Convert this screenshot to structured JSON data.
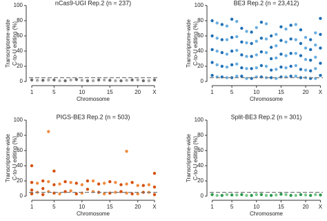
{
  "chart_data": [
    {
      "type": "scatter",
      "title": "nCas9-UGI Rep.2 (n = 237)",
      "ylabel": [
        "Transcriptome-wide",
        "C-to-U editing (%)"
      ],
      "xlabel": "Chromosome",
      "xlim": [
        0.5,
        23.5
      ],
      "ylim": [
        0,
        100
      ],
      "xticks": [
        1,
        5,
        10,
        15,
        20,
        {
          "value": 23,
          "label": "X"
        }
      ],
      "yticks": [
        0,
        20,
        40,
        60,
        80,
        100
      ],
      "reference_line": 5,
      "series": [
        {
          "color": "#6e6e6e",
          "x": [
            1,
            3,
            5,
            7,
            9,
            11,
            13,
            15,
            17,
            19,
            21,
            23
          ],
          "y": [
            2,
            1.5,
            2,
            1,
            2.5,
            1,
            2,
            1.5,
            1,
            2,
            1,
            2
          ]
        },
        {
          "color": "#a8a8a8",
          "x": [
            2,
            4,
            6,
            8,
            10,
            12,
            14,
            16,
            18,
            20,
            22
          ],
          "y": [
            1.5,
            2,
            1,
            2,
            1.5,
            1,
            2,
            1,
            1.5,
            2,
            1
          ]
        }
      ]
    },
    {
      "type": "scatter",
      "title": "BE3 Rep.2 (n = 23,412)",
      "ylabel": [
        "Transcriptome-wide",
        "C-to-U editing (%)"
      ],
      "xlabel": "Chromosome",
      "xlim": [
        0.5,
        23.5
      ],
      "ylim": [
        0,
        100
      ],
      "xticks": [
        1,
        5,
        10,
        15,
        20,
        {
          "value": 23,
          "label": "X"
        }
      ],
      "yticks": [
        0,
        20,
        40,
        60,
        80,
        100
      ],
      "reference_line": 5,
      "series": [
        {
          "color": "#1f6fb4",
          "x": [
            1,
            1,
            1,
            1,
            1,
            3,
            3,
            3,
            3,
            3,
            5,
            5,
            5,
            5,
            5,
            7,
            7,
            7,
            7,
            7,
            9,
            9,
            9,
            9,
            9,
            11,
            11,
            11,
            11,
            11,
            13,
            13,
            13,
            13,
            13,
            15,
            15,
            15,
            15,
            15,
            17,
            17,
            17,
            17,
            17,
            19,
            19,
            19,
            19,
            19,
            21,
            21,
            21,
            21,
            21,
            23,
            23,
            23,
            23,
            23
          ],
          "y": [
            80,
            60,
            42,
            25,
            8,
            75,
            55,
            38,
            20,
            6,
            82,
            58,
            40,
            22,
            5,
            70,
            52,
            35,
            18,
            7,
            65,
            50,
            33,
            17,
            4,
            78,
            57,
            39,
            21,
            6,
            60,
            45,
            30,
            15,
            5,
            72,
            54,
            36,
            19,
            6,
            74,
            56,
            37,
            20,
            7,
            68,
            50,
            34,
            16,
            5,
            55,
            42,
            28,
            14,
            4,
            83,
            62,
            44,
            24,
            8
          ]
        },
        {
          "color": "#6aaee0",
          "x": [
            2,
            2,
            2,
            2,
            2,
            4,
            4,
            4,
            4,
            4,
            6,
            6,
            6,
            6,
            6,
            8,
            8,
            8,
            8,
            8,
            10,
            10,
            10,
            10,
            10,
            12,
            12,
            12,
            12,
            12,
            14,
            14,
            14,
            14,
            14,
            16,
            16,
            16,
            16,
            16,
            18,
            18,
            18,
            18,
            18,
            20,
            20,
            20,
            20,
            20,
            22,
            22,
            22,
            22,
            22
          ],
          "y": [
            77,
            57,
            40,
            22,
            6,
            73,
            55,
            36,
            19,
            5,
            79,
            59,
            41,
            23,
            7,
            66,
            51,
            33,
            17,
            4,
            71,
            53,
            35,
            18,
            6,
            76,
            56,
            38,
            20,
            5,
            62,
            47,
            31,
            16,
            4,
            69,
            52,
            34,
            18,
            6,
            75,
            55,
            37,
            21,
            7,
            58,
            44,
            29,
            15,
            5,
            64,
            48,
            32,
            17,
            4
          ]
        }
      ]
    },
    {
      "type": "scatter",
      "title": "PIGS-BE3 Rep.2 (n = 503)",
      "ylabel": [
        "Transcriptome-wide",
        "C-to-U editing (%)"
      ],
      "xlabel": "Chromosome",
      "xlim": [
        0.5,
        23.5
      ],
      "ylim": [
        0,
        100
      ],
      "xticks": [
        1,
        5,
        10,
        15,
        20,
        {
          "value": 23,
          "label": "X"
        }
      ],
      "yticks": [
        0,
        20,
        40,
        60,
        80,
        100
      ],
      "reference_line": 5,
      "series": [
        {
          "color": "#d4500c",
          "x": [
            1,
            1,
            1,
            1,
            3,
            3,
            3,
            5,
            5,
            5,
            7,
            7,
            9,
            9,
            11,
            11,
            13,
            13,
            15,
            15,
            17,
            17,
            19,
            19,
            21,
            21,
            23,
            23,
            23
          ],
          "y": [
            40,
            18,
            8,
            3,
            20,
            10,
            2,
            33,
            15,
            4,
            19,
            6,
            17,
            3,
            20,
            9,
            16,
            5,
            19,
            4,
            15,
            6,
            18,
            3,
            14,
            5,
            30,
            12,
            2
          ]
        },
        {
          "color": "#f08a3c",
          "x": [
            2,
            2,
            4,
            4,
            4,
            6,
            6,
            8,
            8,
            10,
            10,
            12,
            12,
            14,
            14,
            16,
            16,
            18,
            18,
            18,
            20,
            20,
            22,
            22
          ],
          "y": [
            17,
            5,
            85,
            19,
            6,
            16,
            3,
            18,
            7,
            15,
            4,
            20,
            6,
            17,
            3,
            18,
            5,
            59,
            16,
            4,
            14,
            3,
            15,
            5
          ]
        }
      ]
    },
    {
      "type": "scatter",
      "title": "Split-BE3 Rep.2 (n = 301)",
      "ylabel": [
        "Transcriptome-wide",
        "C-to-U editing (%)"
      ],
      "xlabel": "Chromosome",
      "xlim": [
        0.5,
        23.5
      ],
      "ylim": [
        0,
        100
      ],
      "xticks": [
        1,
        5,
        10,
        15,
        20,
        {
          "value": 23,
          "label": "X"
        }
      ],
      "yticks": [
        0,
        20,
        40,
        60,
        80,
        100
      ],
      "reference_line": 5,
      "series": [
        {
          "color": "#2e9a4f",
          "x": [
            1,
            3,
            5,
            7,
            9,
            11,
            13,
            15,
            17,
            19,
            21,
            23
          ],
          "y": [
            2,
            1,
            1.5,
            2,
            1,
            2,
            1,
            2.5,
            1,
            2,
            1,
            1.5
          ]
        },
        {
          "color": "#7cc78b",
          "x": [
            2,
            4,
            6,
            8,
            10,
            12,
            14,
            16,
            18,
            20,
            22
          ],
          "y": [
            1,
            2,
            1.5,
            1,
            2,
            1,
            1.5,
            2,
            1,
            1.5,
            2
          ]
        }
      ]
    }
  ]
}
